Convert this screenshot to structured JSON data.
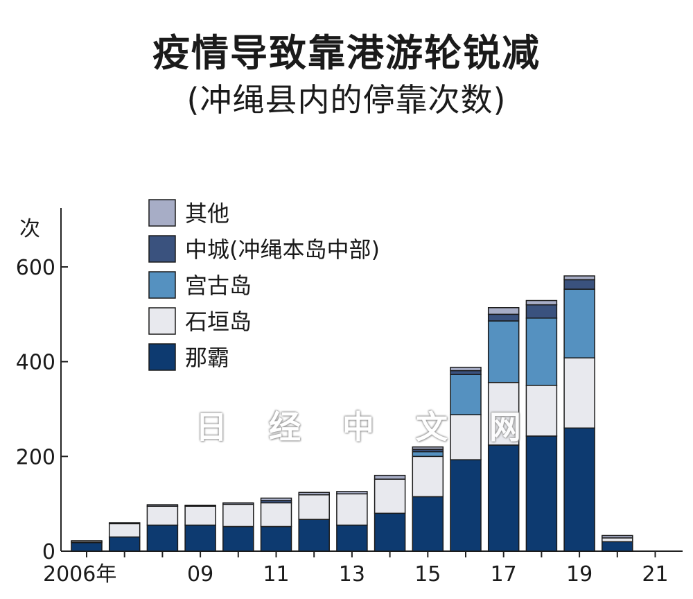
{
  "watermark": "日 经 中 文 网",
  "chart_data": {
    "type": "bar",
    "stacked": true,
    "title": "疫情导致靠港游轮锐减",
    "subtitle": "(冲绳县内的停靠次数)",
    "ylabel": "次",
    "ylim": [
      0,
      700
    ],
    "yticks": [
      0,
      200,
      400,
      600
    ],
    "x": [
      2006,
      2007,
      2008,
      2009,
      2010,
      2011,
      2012,
      2013,
      2014,
      2015,
      2016,
      2017,
      2018,
      2019,
      2020,
      2021
    ],
    "xtick_labels": [
      {
        "x": 2006,
        "label": "2006年"
      },
      {
        "x": 2009,
        "label": "09"
      },
      {
        "x": 2011,
        "label": "11"
      },
      {
        "x": 2013,
        "label": "13"
      },
      {
        "x": 2015,
        "label": "15"
      },
      {
        "x": 2017,
        "label": "17"
      },
      {
        "x": 2019,
        "label": "19"
      },
      {
        "x": 2021,
        "label": "21"
      }
    ],
    "legend_position": "top-left",
    "series": [
      {
        "name": "那霸",
        "color": "#0d3a70",
        "values": [
          18,
          30,
          55,
          55,
          52,
          52,
          67,
          55,
          80,
          115,
          193,
          224,
          243,
          260,
          20,
          0
        ]
      },
      {
        "name": "石垣岛",
        "color": "#e8e9ee",
        "values": [
          3,
          28,
          40,
          40,
          47,
          50,
          52,
          66,
          72,
          85,
          95,
          132,
          107,
          148,
          8,
          0
        ]
      },
      {
        "name": "宫古岛",
        "color": "#5591c0",
        "values": [
          0,
          0,
          0,
          0,
          0,
          0,
          0,
          0,
          0,
          10,
          85,
          130,
          142,
          145,
          0,
          0
        ]
      },
      {
        "name": "中城(冲绳本岛中部)",
        "color": "#3a527e",
        "values": [
          0,
          0,
          0,
          0,
          0,
          5,
          0,
          0,
          0,
          5,
          8,
          14,
          28,
          20,
          0,
          0
        ]
      },
      {
        "name": "其他",
        "color": "#a7adc6",
        "values": [
          1,
          2,
          3,
          2,
          3,
          5,
          5,
          5,
          8,
          5,
          7,
          14,
          9,
          8,
          5,
          0
        ]
      }
    ]
  }
}
